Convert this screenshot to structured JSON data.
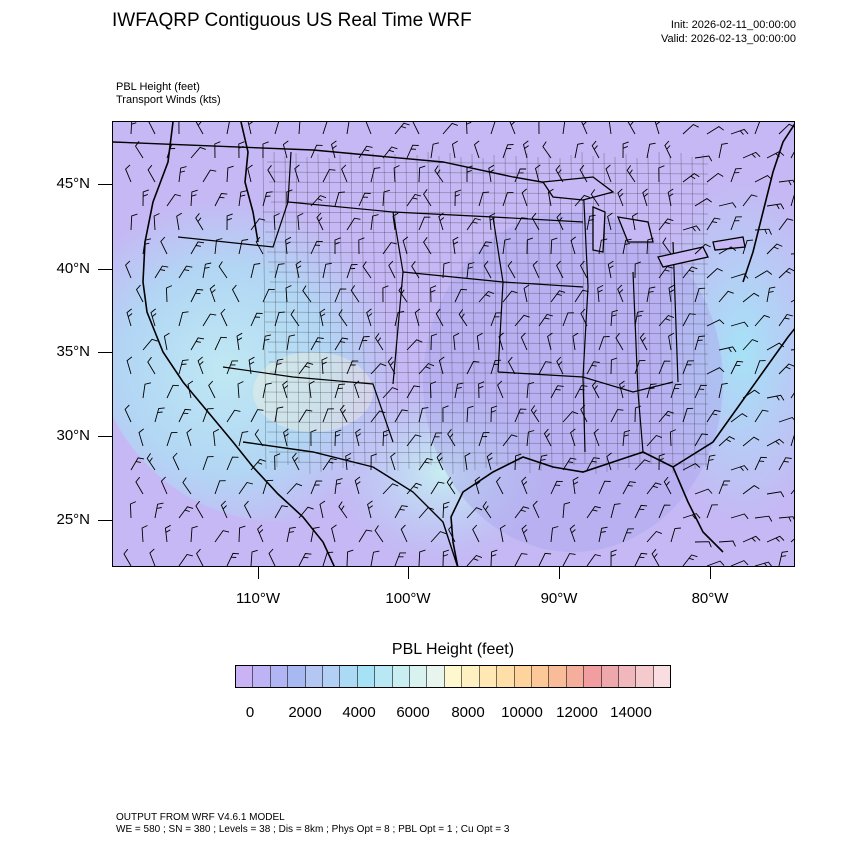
{
  "title": "IWFAQRP Contiguous US Real Time WRF",
  "init": "Init: 2026-02-11_00:00:00",
  "valid": "Valid: 2026-02-13_00:00:00",
  "fields": [
    "PBL Height   (feet)",
    "Transport Winds   (kts)"
  ],
  "lat_labels": [
    "45°N",
    "40°N",
    "35°N",
    "30°N",
    "25°N"
  ],
  "lon_labels": [
    "110°W",
    "100°W",
    "90°W",
    "80°W"
  ],
  "colorbar": {
    "title": "PBL Height  (feet)",
    "labels": [
      "0",
      "2000",
      "4000",
      "6000",
      "8000",
      "10000",
      "12000",
      "14000"
    ],
    "colors": [
      "#c9b3f5",
      "#bdb3f5",
      "#b1b5f3",
      "#a8b8f0",
      "#b4c6f2",
      "#b2d0f5",
      "#abdaf5",
      "#a6e2f6",
      "#b7e8f3",
      "#c8eef2",
      "#d8f2f0",
      "#e8f5ee",
      "#fff8cf",
      "#fff0c1",
      "#ffe8b4",
      "#ffdfa8",
      "#ffd49c",
      "#fcc898",
      "#f9bc99",
      "#f5ad9c",
      "#f29ea0",
      "#eea8ac",
      "#f0b8bc",
      "#f5cacd",
      "#fadde0"
    ]
  },
  "footer": [
    "OUTPUT FROM WRF V4.6.1 MODEL",
    "WE = 580 ; SN = 380 ; Levels = 38 ; Dis = 8km ; Phys Opt = 8 ; PBL Opt = 1 ; Cu Opt = 3"
  ]
}
